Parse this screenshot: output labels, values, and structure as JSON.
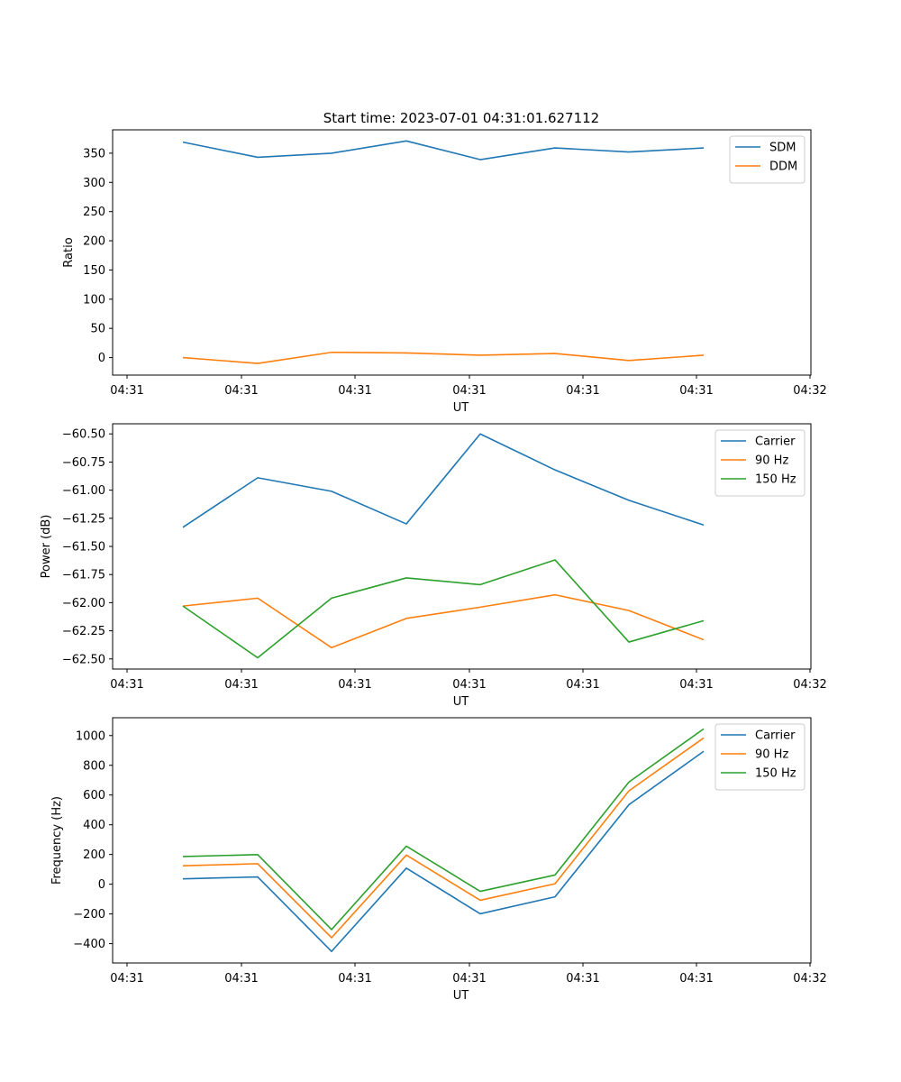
{
  "figure_title": "Start time: 2023-07-01 04:31:01.627112",
  "chart_data": [
    {
      "type": "line",
      "xlabel": "UT",
      "ylabel": "Ratio",
      "xtick_labels": [
        "04:31",
        "04:31",
        "04:31",
        "04:31",
        "04:31",
        "04:31",
        "04:31"
      ],
      "x_last_tick_label": "04:32",
      "yticks": [
        0,
        50,
        100,
        150,
        200,
        250,
        300,
        350
      ],
      "ytick_labels": [
        "0",
        "50",
        "100",
        "150",
        "200",
        "250",
        "300",
        "350"
      ],
      "ylim": [
        -30,
        390
      ],
      "legend_position": "upper right",
      "series": [
        {
          "name": "SDM",
          "color": "#1f77b4",
          "values": [
            369,
            343,
            350,
            371,
            339,
            359,
            352,
            359
          ]
        },
        {
          "name": "DDM",
          "color": "#ff7f0e",
          "values": [
            0,
            -10,
            9,
            8,
            4,
            7,
            -5,
            4
          ]
        }
      ]
    },
    {
      "type": "line",
      "xlabel": "UT",
      "ylabel": "Power (dB)",
      "xtick_labels": [
        "04:31",
        "04:31",
        "04:31",
        "04:31",
        "04:31",
        "04:31",
        "04:31"
      ],
      "x_last_tick_label": "04:32",
      "yticks": [
        -62.5,
        -62.25,
        -62.0,
        -61.75,
        -61.5,
        -61.25,
        -61.0,
        -60.75,
        -60.5
      ],
      "ytick_labels": [
        "−62.50",
        "−62.25",
        "−62.00",
        "−61.75",
        "−61.50",
        "−61.25",
        "−61.00",
        "−60.75",
        "−60.50"
      ],
      "ylim": [
        -62.59,
        -60.41
      ],
      "legend_position": "upper right",
      "series": [
        {
          "name": "Carrier",
          "color": "#1f77b4",
          "values": [
            -61.33,
            -60.89,
            -61.01,
            -61.3,
            -60.5,
            -60.82,
            -61.09,
            -61.31
          ]
        },
        {
          "name": "90 Hz",
          "color": "#ff7f0e",
          "values": [
            -62.03,
            -61.96,
            -62.4,
            -62.14,
            -62.04,
            -61.93,
            -62.07,
            -62.33
          ]
        },
        {
          "name": "150 Hz",
          "color": "#2ca02c",
          "values": [
            -62.03,
            -62.49,
            -61.96,
            -61.78,
            -61.84,
            -61.62,
            -62.35,
            -62.16
          ]
        }
      ]
    },
    {
      "type": "line",
      "xlabel": "UT",
      "ylabel": "Frequency (Hz)",
      "xtick_labels": [
        "04:31",
        "04:31",
        "04:31",
        "04:31",
        "04:31",
        "04:31",
        "04:31"
      ],
      "x_last_tick_label": "04:32",
      "yticks": [
        -400,
        -200,
        0,
        200,
        400,
        600,
        800,
        1000
      ],
      "ytick_labels": [
        "−400",
        "−200",
        "0",
        "200",
        "400",
        "600",
        "800",
        "1000"
      ],
      "ylim": [
        -530,
        1120
      ],
      "legend_position": "upper right",
      "series": [
        {
          "name": "Carrier",
          "color": "#1f77b4",
          "values": [
            36,
            49,
            -452,
            108,
            -199,
            -85,
            535,
            894
          ]
        },
        {
          "name": "90 Hz",
          "color": "#ff7f0e",
          "values": [
            124,
            138,
            -360,
            196,
            -108,
            3,
            628,
            984
          ]
        },
        {
          "name": "150 Hz",
          "color": "#2ca02c",
          "values": [
            186,
            199,
            -305,
            256,
            -48,
            62,
            687,
            1045
          ]
        }
      ]
    }
  ]
}
